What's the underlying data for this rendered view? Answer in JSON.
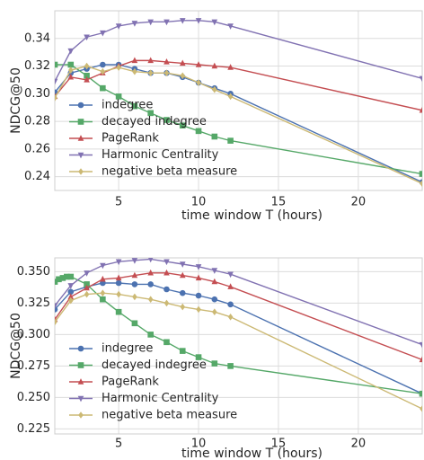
{
  "chart_data": [
    {
      "type": "line",
      "ylabel": "NDCG@50",
      "xlabel": "time window T (hours)",
      "x": [
        1,
        2,
        3,
        4,
        5,
        6,
        7,
        8,
        9,
        10,
        11,
        12,
        24
      ],
      "xlim": [
        1,
        24
      ],
      "xticks": [
        5,
        10,
        15,
        20
      ],
      "ylim": [
        0.23,
        0.36
      ],
      "yticks": [
        0.24,
        0.26,
        0.28,
        {
          "value": 0.3,
          "label": "0.30"
        },
        0.32,
        0.34
      ],
      "grid": true,
      "legend": "lower left",
      "series": [
        {
          "name": "indegree",
          "color": "#4c72b0",
          "marker": "circle",
          "values": [
            0.301,
            0.315,
            0.318,
            0.321,
            0.321,
            0.318,
            0.315,
            0.315,
            0.312,
            0.308,
            0.304,
            0.3,
            0.236
          ]
        },
        {
          "name": "decayed indegree",
          "color": "#55a868",
          "marker": "square",
          "values": [
            0.321,
            0.321,
            0.313,
            0.304,
            0.298,
            0.291,
            0.286,
            0.281,
            0.277,
            0.273,
            0.269,
            0.266,
            0.242
          ]
        },
        {
          "name": "PageRank",
          "color": "#c44e52",
          "marker": "triangle-up",
          "values": [
            0.298,
            0.312,
            0.31,
            0.315,
            0.32,
            0.324,
            0.324,
            0.323,
            0.322,
            0.321,
            0.32,
            0.319,
            0.288
          ]
        },
        {
          "name": "Harmonic Centrality",
          "color": "#8172b2",
          "marker": "triangle-down",
          "values": [
            0.309,
            0.331,
            0.341,
            0.344,
            0.349,
            0.351,
            0.352,
            0.352,
            0.353,
            0.353,
            0.352,
            0.349,
            0.311
          ]
        },
        {
          "name": "negative beta measure",
          "color": "#ccb974",
          "marker": "diamond",
          "values": [
            0.297,
            0.317,
            0.32,
            0.316,
            0.319,
            0.316,
            0.315,
            0.315,
            0.313,
            0.308,
            0.303,
            0.298,
            0.235
          ]
        }
      ]
    },
    {
      "type": "line",
      "ylabel": "NDCG@50",
      "xlabel": "time window T (hours)",
      "x": [
        1,
        2,
        3,
        4,
        5,
        6,
        7,
        8,
        9,
        10,
        11,
        12,
        24
      ],
      "xlim": [
        1,
        24
      ],
      "xticks": [
        5,
        10,
        15,
        20
      ],
      "ylim": [
        0.221,
        0.361
      ],
      "yticks": [
        0.225,
        {
          "value": 0.25,
          "label": "0.250"
        },
        0.275,
        {
          "value": 0.3,
          "label": "0.300"
        },
        0.325,
        {
          "value": 0.35,
          "label": "0.350"
        }
      ],
      "grid": true,
      "legend": "lower left",
      "series": [
        {
          "name": "indegree",
          "color": "#4c72b0",
          "marker": "circle",
          "values": [
            0.32,
            0.334,
            0.338,
            0.341,
            0.341,
            0.34,
            0.34,
            0.336,
            0.333,
            0.331,
            0.328,
            0.324,
            0.253
          ]
        },
        {
          "name": "decayed indegree",
          "color": "#55a868",
          "marker": "square",
          "x": [
            1,
            1.25,
            1.5,
            1.75,
            2,
            3,
            4,
            5,
            6,
            7,
            8,
            9,
            10,
            11,
            12,
            24
          ],
          "values": [
            0.342,
            0.344,
            0.345,
            0.346,
            0.346,
            0.34,
            0.328,
            0.318,
            0.309,
            0.3,
            0.294,
            0.287,
            0.282,
            0.277,
            0.275,
            0.253
          ]
        },
        {
          "name": "PageRank",
          "color": "#c44e52",
          "marker": "triangle-up",
          "values": [
            0.312,
            0.33,
            0.337,
            0.344,
            0.345,
            0.347,
            0.349,
            0.349,
            0.347,
            0.345,
            0.342,
            0.338,
            0.28
          ]
        },
        {
          "name": "Harmonic Centrality",
          "color": "#8172b2",
          "marker": "triangle-down",
          "values": [
            0.323,
            0.339,
            0.349,
            0.355,
            0.358,
            0.359,
            0.36,
            0.358,
            0.356,
            0.354,
            0.351,
            0.348,
            0.292
          ]
        },
        {
          "name": "negative beta measure",
          "color": "#ccb974",
          "marker": "diamond",
          "values": [
            0.31,
            0.327,
            0.332,
            0.333,
            0.332,
            0.33,
            0.328,
            0.325,
            0.322,
            0.32,
            0.318,
            0.314,
            0.241
          ]
        }
      ]
    }
  ]
}
